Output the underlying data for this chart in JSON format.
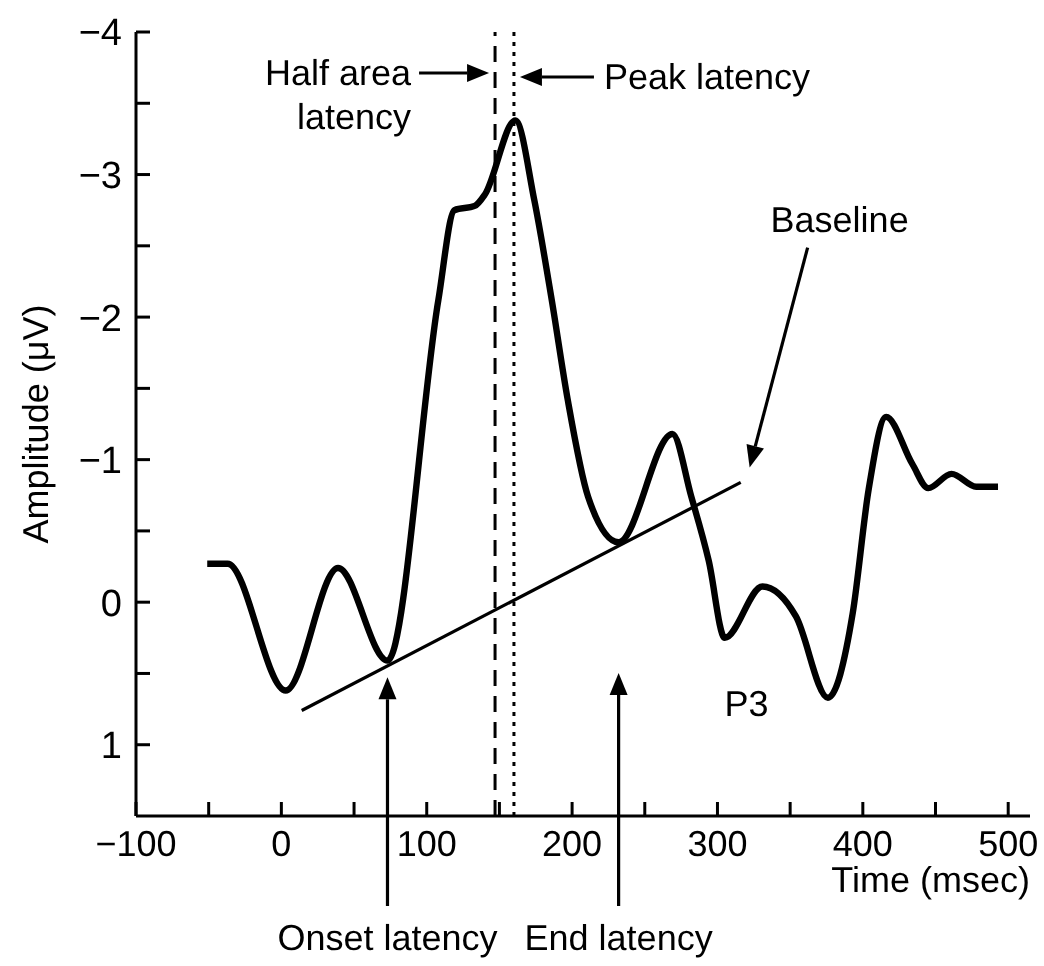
{
  "chart_data": {
    "type": "line",
    "xlabel": "Time (msec)",
    "ylabel": "Amplitude (μV)",
    "xlim": [
      -100,
      515
    ],
    "xticks": [
      -100,
      {
        "value": -50,
        "label": null
      },
      0,
      {
        "value": 50,
        "label": null
      },
      100,
      {
        "value": 150,
        "label": null
      },
      200,
      {
        "value": 250,
        "label": null
      },
      300,
      {
        "value": 350,
        "label": null
      },
      400,
      {
        "value": 450,
        "label": null
      },
      500
    ],
    "ylim": [
      1.5,
      -4
    ],
    "yticks": [
      1,
      {
        "value": 0.5,
        "label": null
      },
      0,
      {
        "value": -0.5,
        "label": null
      },
      -1,
      {
        "value": -1.5,
        "label": null
      },
      -2,
      {
        "value": -2.5,
        "label": null
      },
      -3,
      {
        "value": -3.5,
        "label": null
      },
      -4
    ],
    "marker": "none",
    "line_style": "solid",
    "series": [
      {
        "color": "#000000",
        "x": [
          -51,
          -37,
          3,
          39,
          73,
          108,
          119,
          133,
          140,
          161,
          174,
          186,
          197,
          211,
          232,
          269,
          282,
          294,
          305,
          331,
          354,
          376,
          393,
          404,
          416,
          434,
          445,
          461,
          478,
          493
        ],
        "values": [
          -0.27,
          -0.27,
          0.62,
          -0.24,
          0.41,
          -2.12,
          -2.75,
          -2.78,
          -2.86,
          -3.38,
          -2.82,
          -2.12,
          -1.42,
          -0.74,
          -0.42,
          -1.18,
          -0.74,
          -0.29,
          0.25,
          -0.11,
          0.1,
          0.67,
          0.08,
          -0.79,
          -1.3,
          -0.97,
          -0.8,
          -0.9,
          -0.81,
          -0.81
        ]
      },
      {
        "color": "#000000",
        "x": [
          14,
          316
        ],
        "values": [
          0.76,
          -0.84
        ]
      }
    ],
    "ref_lines": [
      {
        "axis": "x",
        "value": 147,
        "label": "Half area latency",
        "line_style": "dashed",
        "color": "#000000"
      },
      {
        "axis": "x",
        "value": 160,
        "label": "Peak latency",
        "line_style": "dotted",
        "color": "#000000"
      }
    ],
    "annotations": [
      "Onset latency",
      "End latency",
      "Baseline",
      "P3"
    ]
  }
}
